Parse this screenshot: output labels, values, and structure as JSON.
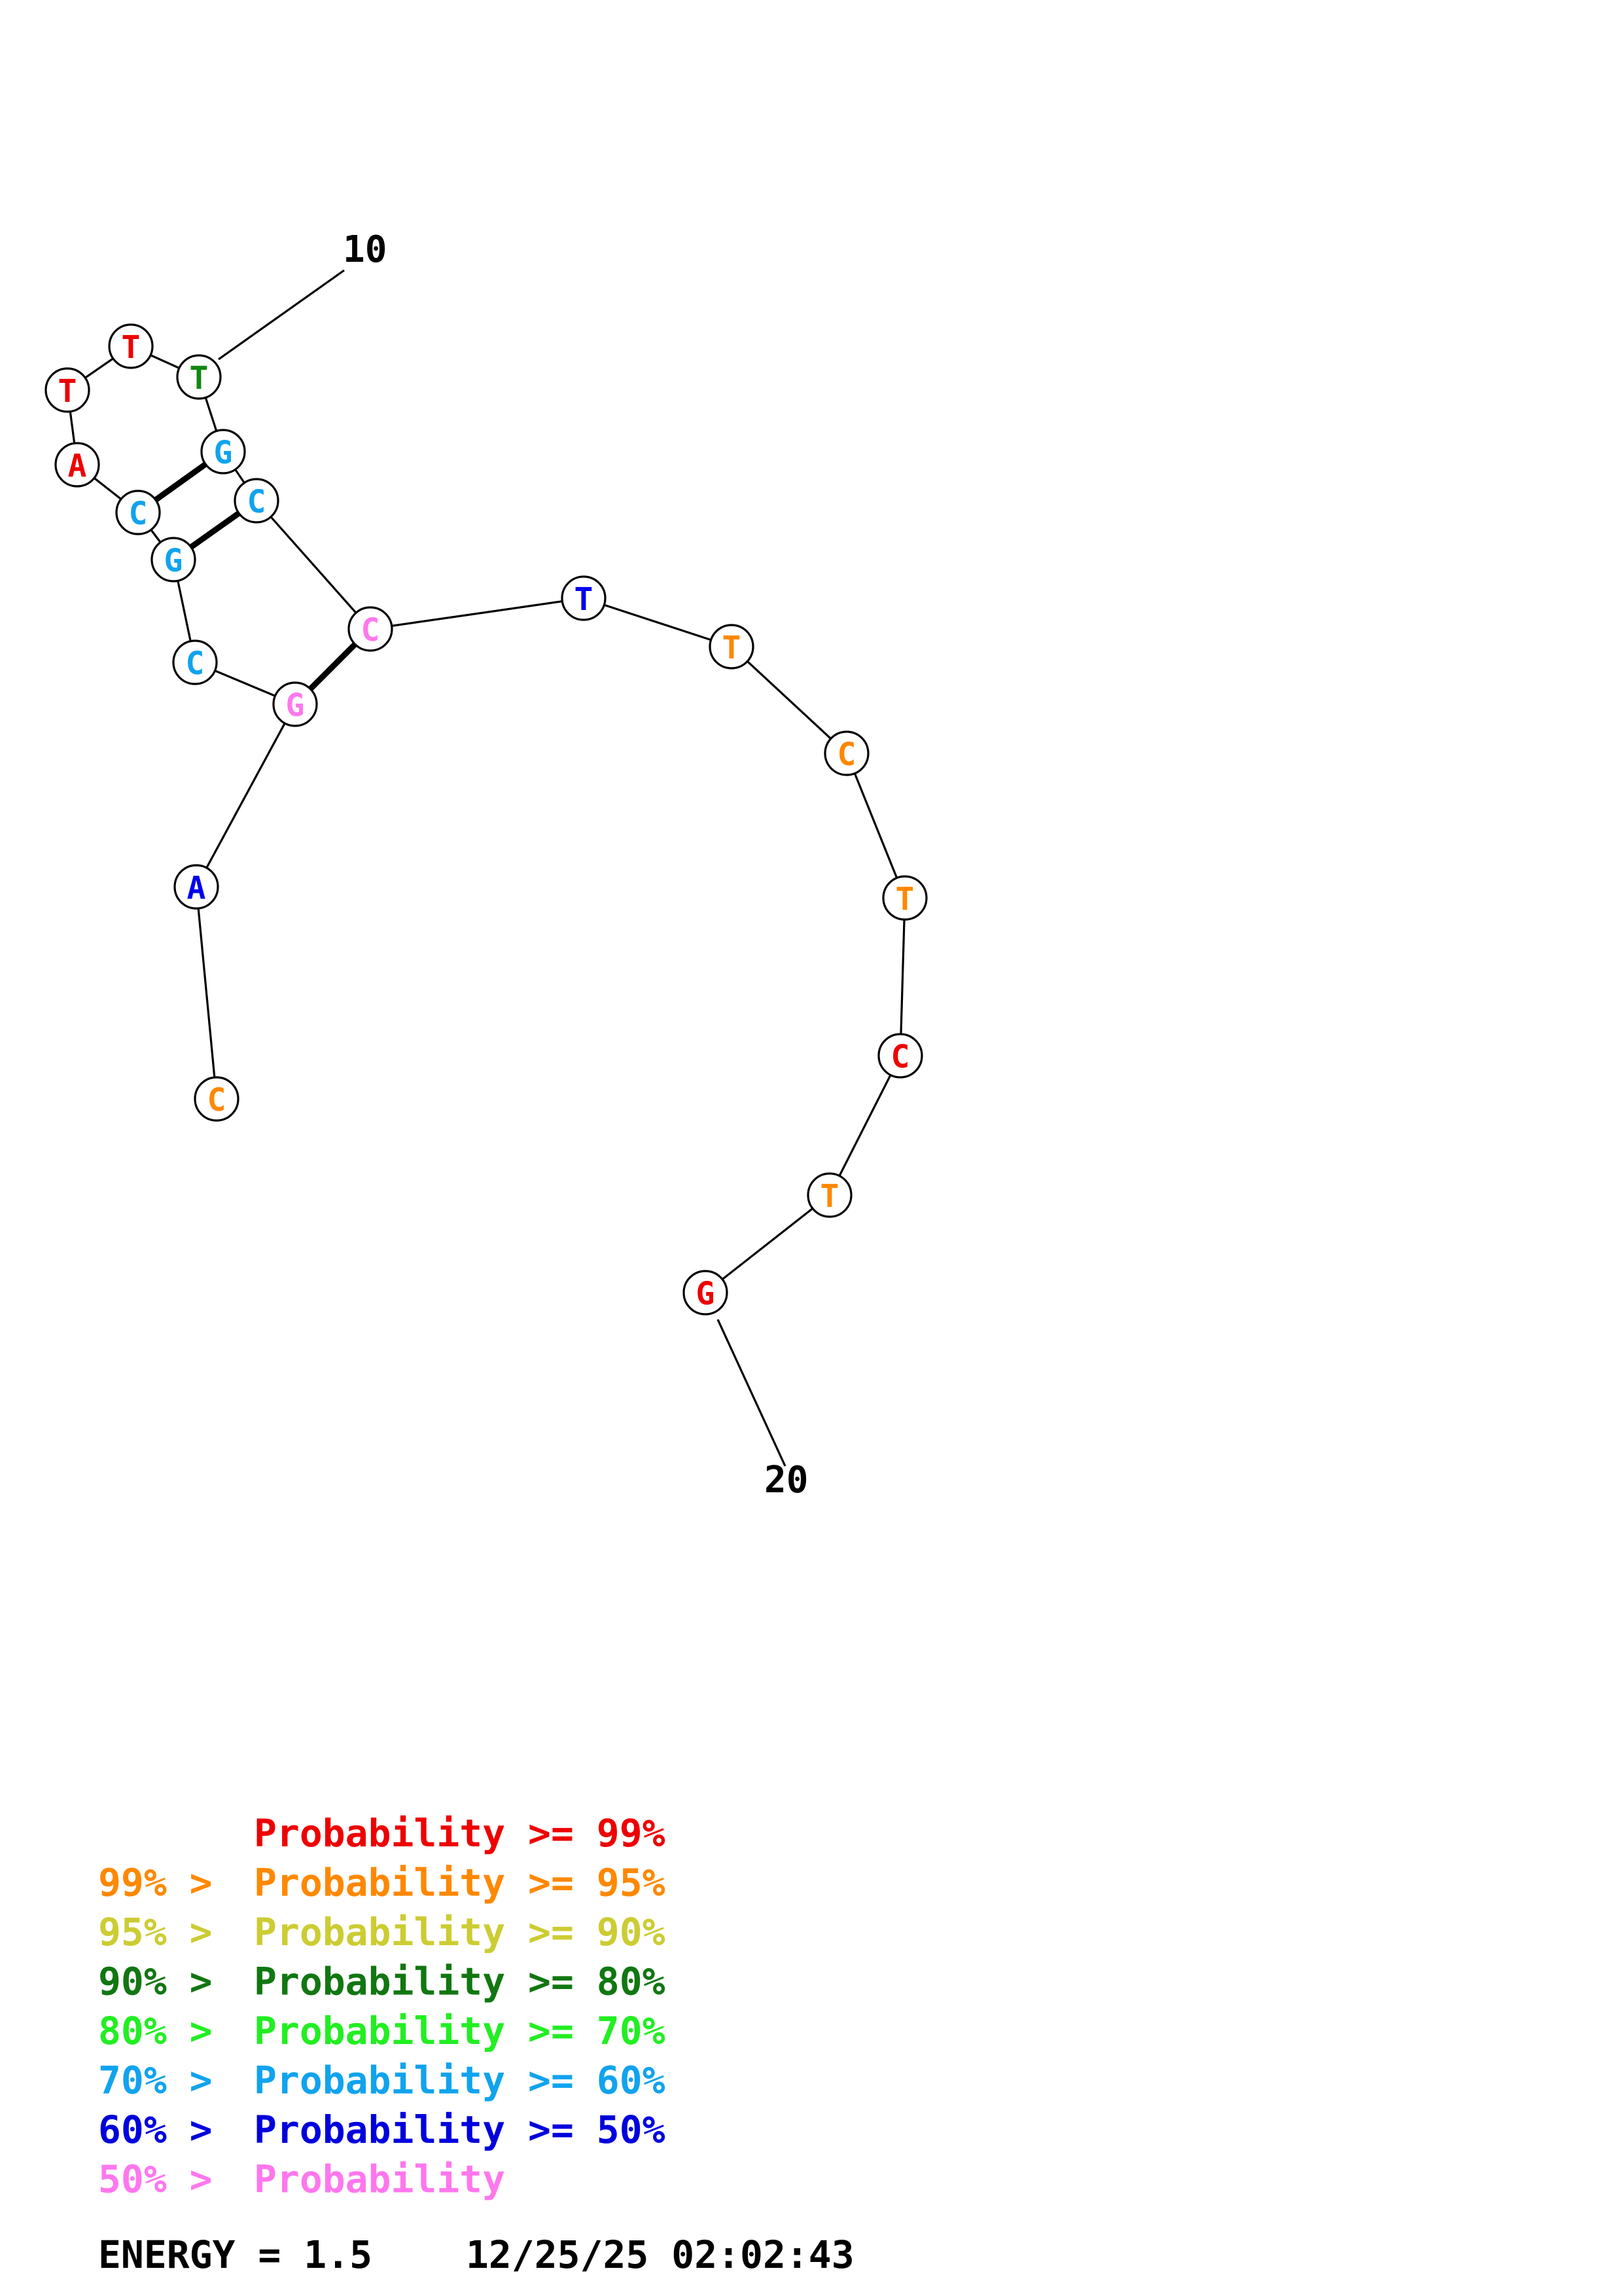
{
  "structure": {
    "start_label": "10",
    "end_label": "20",
    "nucleotides": [
      {
        "base": "C",
        "color": "#ff8800"
      },
      {
        "base": "A",
        "color": "#0000ee"
      },
      {
        "base": "G",
        "color": "#ff77ee"
      },
      {
        "base": "C",
        "color": "#11a3ee"
      },
      {
        "base": "G",
        "color": "#11a3ee"
      },
      {
        "base": "C",
        "color": "#11a3ee"
      },
      {
        "base": "A",
        "color": "#ee0000"
      },
      {
        "base": "T",
        "color": "#ee0000"
      },
      {
        "base": "T",
        "color": "#ee0000"
      },
      {
        "base": "T",
        "color": "#118811"
      },
      {
        "base": "G",
        "color": "#11a3ee"
      },
      {
        "base": "C",
        "color": "#11a3ee"
      },
      {
        "base": "C",
        "color": "#ff77ee"
      },
      {
        "base": "T",
        "color": "#0000ee"
      },
      {
        "base": "T",
        "color": "#ff8800"
      },
      {
        "base": "C",
        "color": "#ff8800"
      },
      {
        "base": "T",
        "color": "#ff8800"
      },
      {
        "base": "C",
        "color": "#ee0000"
      },
      {
        "base": "T",
        "color": "#ff8800"
      },
      {
        "base": "G",
        "color": "#ee0000"
      }
    ],
    "base_pairs": [
      [
        3,
        13
      ],
      [
        5,
        12
      ],
      [
        6,
        11
      ]
    ]
  },
  "legend": [
    {
      "prefix": "",
      "label": "Probability",
      "suffix": " >= 99%",
      "color": "#ee0000"
    },
    {
      "prefix": "99% > ",
      "label": "Probability",
      "suffix": " >= 95%",
      "color": "#ff8800"
    },
    {
      "prefix": "95% > ",
      "label": "Probability",
      "suffix": " >= 90%",
      "color": "#cccc33"
    },
    {
      "prefix": "90% > ",
      "label": "Probability",
      "suffix": " >= 80%",
      "color": "#117711"
    },
    {
      "prefix": "80% > ",
      "label": "Probability",
      "suffix": " >= 70%",
      "color": "#22ee22"
    },
    {
      "prefix": "70% > ",
      "label": "Probability",
      "suffix": " >= 60%",
      "color": "#11a3ee"
    },
    {
      "prefix": "60% > ",
      "label": "Probability",
      "suffix": " >= 50%",
      "color": "#0000dd"
    },
    {
      "prefix": "50% > ",
      "label": "Probability",
      "suffix": "",
      "color": "#ff77ee"
    }
  ],
  "footer": {
    "energy_text": "ENERGY = 1.5",
    "timestamp": "12/25/25 02:02:43"
  }
}
